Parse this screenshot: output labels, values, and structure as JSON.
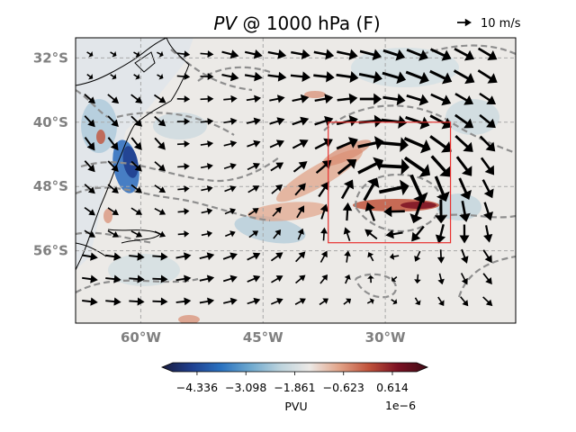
{
  "title": {
    "italic": "PV",
    "rest": " @ 1000 hPa (F)"
  },
  "quiver_key": {
    "label": "10 m/s"
  },
  "map": {
    "lon_range": [
      -68,
      -14
    ],
    "lat_range": [
      -65,
      -29.5
    ],
    "lon_ticks": [
      "60°W",
      "45°W",
      "30°W"
    ],
    "lat_ticks": [
      "32°S",
      "40°S",
      "48°S",
      "56°S"
    ],
    "gridlines": true,
    "highlight_box": {
      "lon": [
        -37,
        -22
      ],
      "lat": [
        -40,
        -55
      ],
      "color": "#e8312f"
    }
  },
  "colorbar": {
    "label": "PVU",
    "exponent": "1e−6",
    "tick_labels": [
      "−4.336",
      "−3.098",
      "−1.861",
      "−0.623",
      "0.614"
    ],
    "tick_values": [
      -4.336,
      -3.098,
      -1.861,
      -0.623,
      0.614
    ],
    "vmin": -4.95,
    "vmax": 1.23,
    "colormap": [
      "#1a1c3e",
      "#1f3f8f",
      "#2a72c0",
      "#6ea9cf",
      "#bcd3dd",
      "#ece9e6",
      "#e2a489",
      "#c1533b",
      "#7b1123",
      "#3f0b16"
    ],
    "extend": "both"
  },
  "colors": {
    "background": "#eceae7",
    "land_tint": "#e2e6ea",
    "vector": "#000000",
    "contour": "#8e8e8e",
    "grid": "#a8a8a8"
  },
  "chart_data": {
    "type": "heatmap",
    "title": "PV @ 1000 hPa (F)",
    "xlabel": "",
    "ylabel": "",
    "x_ticks": [
      "60°W",
      "45°W",
      "30°W"
    ],
    "y_ticks": [
      "32°S",
      "40°S",
      "48°S",
      "56°S"
    ],
    "colorbar_label": "PVU",
    "colorbar_scale": "1e-6",
    "colorbar_ticks": [
      -4.336,
      -3.098,
      -1.861,
      -0.623,
      0.614
    ],
    "overlays": [
      "wind vectors",
      "dashed grey contours",
      "coastlines",
      "red box"
    ],
    "reference_vector": "10 m/s"
  }
}
